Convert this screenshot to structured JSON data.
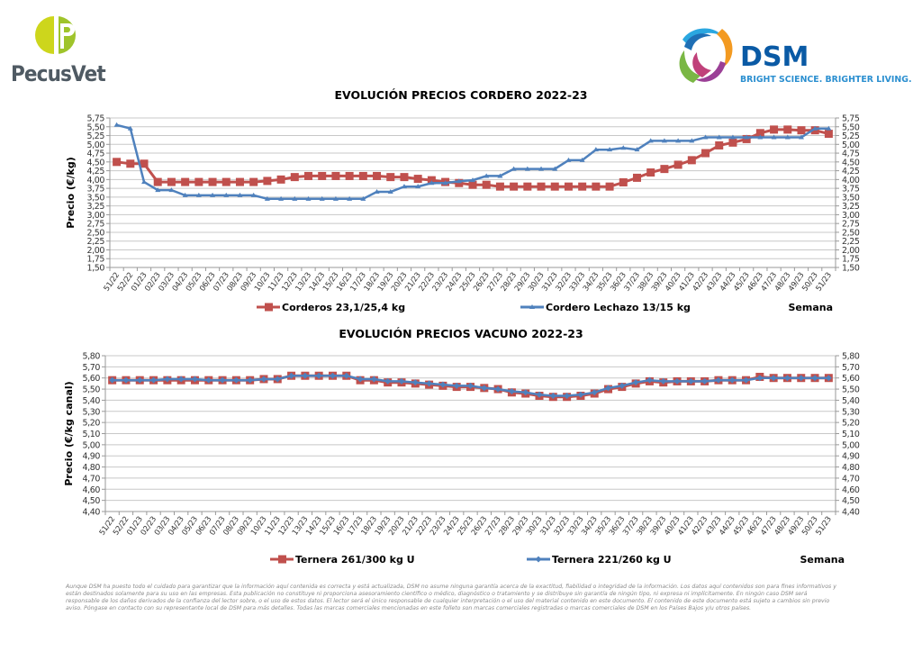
{
  "header": {
    "left_logo_text": "PecusVet",
    "right_logo_text": "DSM",
    "right_logo_tagline": "BRIGHT SCIENCE. BRIGHTER LIVING."
  },
  "colors": {
    "series_red": "#c0504d",
    "series_blue": "#4f81bd",
    "grid": "#c8c8c8",
    "text": "#000000"
  },
  "chart_data": [
    {
      "type": "line",
      "title": "EVOLUCIÓN PRECIOS CORDERO 2022-23",
      "ylabel": "Precio (€/kg)",
      "xlabel": "Semana",
      "ylim": [
        1.5,
        5.75
      ],
      "ytick_labels": [
        "1,50",
        "1,75",
        "2,00",
        "2,25",
        "2,50",
        "2,75",
        "3,00",
        "3,25",
        "3,50",
        "3,75",
        "4,00",
        "4,25",
        "4,50",
        "4,75",
        "5,00",
        "5,25",
        "5,50",
        "5,75"
      ],
      "grid": true,
      "legend": "bottom",
      "categories": [
        "51/22",
        "52/22",
        "01/23",
        "02/23",
        "03/23",
        "04/23",
        "05/23",
        "06/23",
        "07/23",
        "08/23",
        "09/23",
        "10/23",
        "11/23",
        "12/23",
        "13/23",
        "14/23",
        "15/23",
        "16/23",
        "17/23",
        "18/23",
        "19/23",
        "20/23",
        "21/23",
        "22/23",
        "23/23",
        "24/23",
        "25/23",
        "26/23",
        "27/23",
        "28/23",
        "29/23",
        "30/23",
        "31/23",
        "32/23",
        "33/23",
        "34/23",
        "35/23",
        "36/23",
        "37/23",
        "38/23",
        "39/23",
        "40/23",
        "41/23",
        "42/23",
        "43/23",
        "44/23",
        "45/23",
        "46/23",
        "47/23",
        "48/23",
        "49/23",
        "50/23",
        "51/23"
      ],
      "series": [
        {
          "name": "Corderos 23,1/25,4 kg",
          "marker": "square",
          "color": "#c0504d",
          "values": [
            4.5,
            4.45,
            4.45,
            3.93,
            3.93,
            3.93,
            3.93,
            3.93,
            3.93,
            3.93,
            3.93,
            3.96,
            4.0,
            4.07,
            4.1,
            4.1,
            4.1,
            4.1,
            4.1,
            4.1,
            4.07,
            4.07,
            4.02,
            3.98,
            3.93,
            3.9,
            3.85,
            3.85,
            3.8,
            3.8,
            3.8,
            3.8,
            3.8,
            3.8,
            3.8,
            3.8,
            3.8,
            3.92,
            4.05,
            4.2,
            4.3,
            4.42,
            4.55,
            4.75,
            4.97,
            5.05,
            5.15,
            5.32,
            5.42,
            5.42,
            5.4,
            5.4,
            5.3
          ]
        },
        {
          "name": "Cordero Lechazo 13/15 kg",
          "marker": "triangle",
          "color": "#4f81bd",
          "values": [
            5.55,
            5.45,
            3.93,
            3.7,
            3.7,
            3.55,
            3.55,
            3.55,
            3.55,
            3.55,
            3.55,
            3.45,
            3.45,
            3.45,
            3.45,
            3.45,
            3.45,
            3.45,
            3.45,
            3.65,
            3.65,
            3.8,
            3.8,
            3.9,
            3.9,
            3.95,
            3.98,
            4.1,
            4.1,
            4.3,
            4.3,
            4.3,
            4.3,
            4.55,
            4.55,
            4.85,
            4.85,
            4.9,
            4.85,
            5.1,
            5.1,
            5.1,
            5.1,
            5.2,
            5.2,
            5.2,
            5.2,
            5.2,
            5.2,
            5.2,
            5.2,
            5.45,
            5.45
          ]
        }
      ]
    },
    {
      "type": "line",
      "title": "EVOLUCIÓN PRECIOS VACUNO 2022-23",
      "ylabel": "Precio (€/kg canal)",
      "xlabel": "Semana",
      "ylim": [
        4.4,
        5.8
      ],
      "ytick_labels": [
        "4,40",
        "4,50",
        "4,60",
        "4,70",
        "4,80",
        "4,90",
        "5,00",
        "5,10",
        "5,20",
        "5,30",
        "5,40",
        "5,50",
        "5,60",
        "5,70",
        "5,80"
      ],
      "grid": true,
      "legend": "bottom",
      "categories": [
        "51/22",
        "52/22",
        "01/23",
        "02/23",
        "03/23",
        "04/23",
        "05/23",
        "06/23",
        "07/23",
        "08/23",
        "09/23",
        "10/23",
        "11/23",
        "12/23",
        "13/23",
        "14/23",
        "15/23",
        "16/23",
        "17/23",
        "18/23",
        "19/23",
        "20/23",
        "21/23",
        "22/23",
        "23/23",
        "24/23",
        "25/23",
        "26/23",
        "27/23",
        "28/23",
        "29/23",
        "30/23",
        "31/23",
        "32/23",
        "33/23",
        "34/23",
        "35/23",
        "36/23",
        "37/23",
        "38/23",
        "39/23",
        "40/23",
        "41/23",
        "42/23",
        "43/23",
        "44/23",
        "45/23",
        "46/23",
        "47/23",
        "48/23",
        "49/23",
        "50/23",
        "51/23"
      ],
      "series": [
        {
          "name": "Ternera 261/300 kg U",
          "marker": "square",
          "color": "#c0504d",
          "values": [
            5.58,
            5.58,
            5.58,
            5.58,
            5.58,
            5.58,
            5.58,
            5.58,
            5.58,
            5.58,
            5.58,
            5.59,
            5.59,
            5.62,
            5.62,
            5.62,
            5.62,
            5.62,
            5.58,
            5.58,
            5.56,
            5.56,
            5.55,
            5.54,
            5.53,
            5.52,
            5.52,
            5.51,
            5.5,
            5.47,
            5.46,
            5.44,
            5.43,
            5.43,
            5.44,
            5.46,
            5.5,
            5.52,
            5.55,
            5.57,
            5.56,
            5.57,
            5.57,
            5.57,
            5.58,
            5.58,
            5.58,
            5.61,
            5.6,
            5.6,
            5.6,
            5.6,
            5.6
          ]
        },
        {
          "name": "Ternera 221/260 kg U",
          "marker": "diamond",
          "color": "#4f81bd",
          "values": [
            5.58,
            5.58,
            5.58,
            5.58,
            5.59,
            5.59,
            5.59,
            5.58,
            5.58,
            5.58,
            5.58,
            5.59,
            5.59,
            5.62,
            5.62,
            5.62,
            5.62,
            5.62,
            5.59,
            5.59,
            5.57,
            5.57,
            5.56,
            5.55,
            5.54,
            5.53,
            5.53,
            5.51,
            5.5,
            5.48,
            5.47,
            5.45,
            5.44,
            5.44,
            5.45,
            5.47,
            5.51,
            5.53,
            5.56,
            5.58,
            5.57,
            5.57,
            5.57,
            5.57,
            5.58,
            5.58,
            5.58,
            5.6,
            5.6,
            5.6,
            5.6,
            5.6,
            5.6
          ]
        }
      ]
    }
  ],
  "footer": {
    "disclaimer": "Aunque DSM ha puesto todo el cuidado para garantizar que la información aquí contenida es correcta y está actualizada, DSM no asume ninguna garantía acerca de la exactitud, fiabilidad o integridad de la información. Los datos aquí contenidos son para fines informativos y están destinados solamente para su uso en las empresas. Esta publicación no constituye ni proporciona asesoramiento científico o médico, diagnóstico o tratamiento y se distribuye sin garantía de ningún tipo, ni expresa ni implícitamente. En ningún caso DSM será responsable de los daños derivados de la confianza del lector sobre, o el uso de estos datos. El lector será el único responsable de cualquier interpretación o el uso del material contenido en este documento. El contenido de este documento está sujeto a cambios sin previo aviso. Póngase en contacto con su representante local de DSM para más detalles. Todas las marcas comerciales mencionadas en este folleto son marcas comerciales registradas o marcas comerciales de DSM en los Países Bajos y/u otros países."
  }
}
